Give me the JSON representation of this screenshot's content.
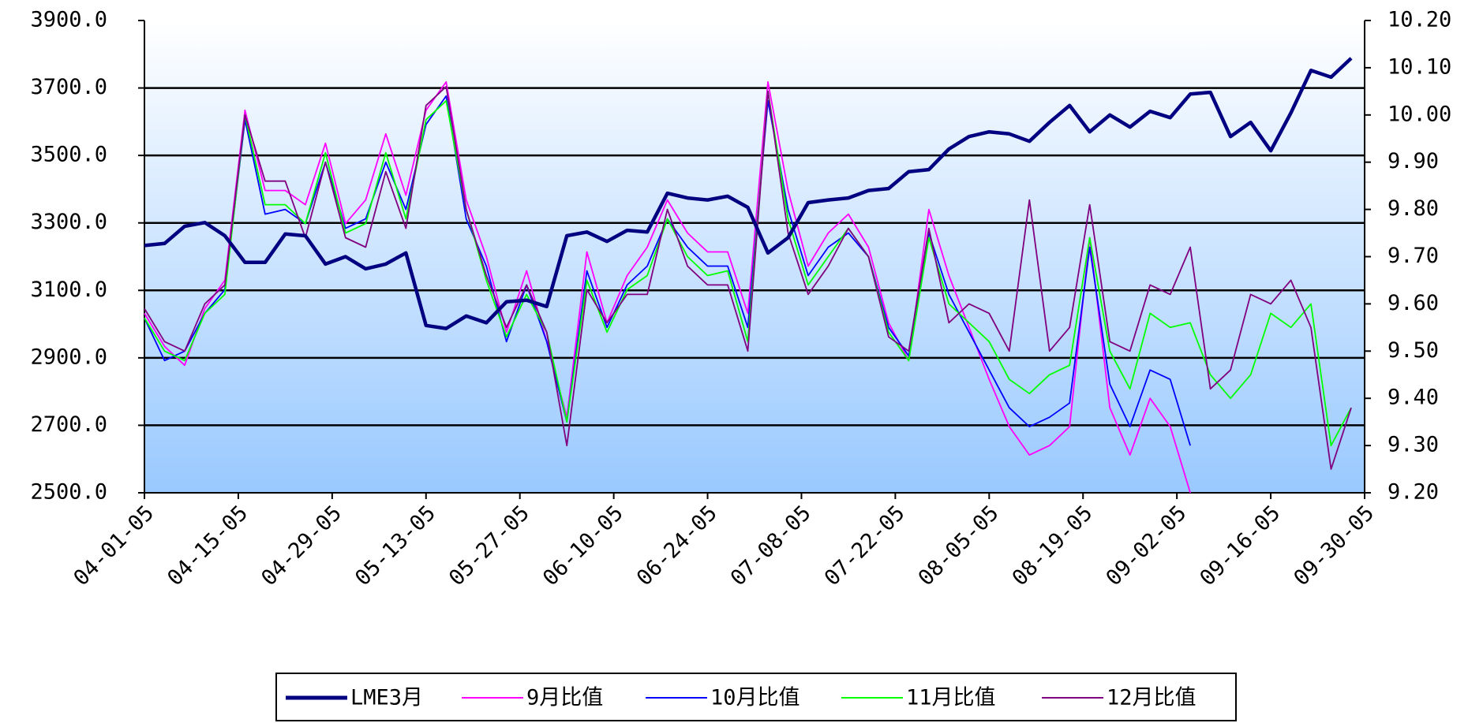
{
  "chart_data": {
    "type": "line",
    "x": [
      "04-01-05",
      "04-04-05",
      "04-07-05",
      "04-10-05",
      "04-13-05",
      "04-16-05",
      "04-19-05",
      "04-22-05",
      "04-25-05",
      "04-28-05",
      "05-01-05",
      "05-04-05",
      "05-07-05",
      "05-10-05",
      "05-13-05",
      "05-16-05",
      "05-19-05",
      "05-22-05",
      "05-25-05",
      "05-28-05",
      "05-31-05",
      "06-03-05",
      "06-06-05",
      "06-09-05",
      "06-12-05",
      "06-15-05",
      "06-18-05",
      "06-21-05",
      "06-24-05",
      "06-27-05",
      "06-30-05",
      "07-03-05",
      "07-06-05",
      "07-09-05",
      "07-12-05",
      "07-15-05",
      "07-18-05",
      "07-21-05",
      "07-24-05",
      "07-27-05",
      "07-30-05",
      "08-02-05",
      "08-05-05",
      "08-08-05",
      "08-11-05",
      "08-14-05",
      "08-17-05",
      "08-20-05",
      "08-23-05",
      "08-26-05",
      "08-29-05",
      "09-01-05",
      "09-04-05",
      "09-07-05",
      "09-10-05",
      "09-13-05",
      "09-16-05",
      "09-19-05",
      "09-22-05",
      "09-25-05",
      "09-28-05"
    ],
    "xlim": [
      "04-01-05",
      "09-30-05"
    ],
    "xticks": [
      "04-01-05",
      "04-15-05",
      "04-29-05",
      "05-13-05",
      "05-27-05",
      "06-10-05",
      "06-24-05",
      "07-08-05",
      "07-22-05",
      "08-05-05",
      "08-19-05",
      "09-02-05",
      "09-16-05",
      "09-30-05"
    ],
    "ylim": [
      2500,
      3900
    ],
    "yticks": [
      {
        "value": 2500,
        "label": "2500.0"
      },
      {
        "value": 2700,
        "label": "2700.0"
      },
      {
        "value": 2900,
        "label": "2900.0"
      },
      {
        "value": 3100,
        "label": "3100.0"
      },
      {
        "value": 3300,
        "label": "3300.0"
      },
      {
        "value": 3500,
        "label": "3500.0"
      },
      {
        "value": 3700,
        "label": "3700.0"
      },
      {
        "value": 3900,
        "label": "3900.0"
      }
    ],
    "y2lim": [
      9.2,
      10.2
    ],
    "y2ticks": [
      {
        "value": 9.2,
        "label": "9.20"
      },
      {
        "value": 9.3,
        "label": "9.30"
      },
      {
        "value": 9.4,
        "label": "9.40"
      },
      {
        "value": 9.5,
        "label": "9.50"
      },
      {
        "value": 9.6,
        "label": "9.60"
      },
      {
        "value": 9.7,
        "label": "9.70"
      },
      {
        "value": 9.8,
        "label": "9.80"
      },
      {
        "value": 9.9,
        "label": "9.90"
      },
      {
        "value": 10.0,
        "label": "10.00"
      },
      {
        "value": 10.1,
        "label": "10.10"
      },
      {
        "value": 10.2,
        "label": "10.20"
      }
    ],
    "grid": true,
    "series": [
      {
        "name": "LME3月",
        "color": "#000080",
        "axis": "y",
        "values": [
          3233,
          3239,
          3290,
          3301,
          3262,
          3183,
          3183,
          3267,
          3262,
          3178,
          3200,
          3164,
          3178,
          3211,
          2996,
          2987,
          3024,
          3004,
          3066,
          3071,
          3052,
          3262,
          3273,
          3245,
          3278,
          3273,
          3388,
          3374,
          3368,
          3379,
          3346,
          3211,
          3256,
          3360,
          3368,
          3374,
          3396,
          3402,
          3452,
          3458,
          3519,
          3556,
          3570,
          3564,
          3542,
          3598,
          3648,
          3570,
          3620,
          3584,
          3631,
          3612,
          3682,
          3687,
          3556,
          3598,
          3514,
          3626,
          3752,
          3732,
          3788
        ]
      },
      {
        "name": "9月比值",
        "color": "#ff00ff",
        "axis": "y2",
        "values": [
          9.58,
          9.51,
          9.47,
          9.59,
          9.65,
          10.01,
          9.84,
          9.84,
          9.81,
          9.94,
          9.77,
          9.82,
          9.96,
          9.83,
          10.01,
          10.07,
          9.82,
          9.7,
          9.54,
          9.67,
          9.52,
          9.36,
          9.71,
          9.56,
          9.66,
          9.72,
          9.82,
          9.75,
          9.71,
          9.71,
          9.58,
          10.07,
          9.84,
          9.68,
          9.75,
          9.79,
          9.72,
          9.56,
          9.48,
          9.8,
          9.66,
          9.55,
          9.44,
          9.34,
          9.28,
          9.3,
          9.34,
          9.74,
          9.38,
          9.28,
          9.4,
          9.34,
          9.2,
          null,
          null,
          null,
          null,
          null,
          null,
          null,
          null
        ]
      },
      {
        "name": "10月比值",
        "color": "#0000ff",
        "axis": "y2",
        "values": [
          9.57,
          9.48,
          9.5,
          9.58,
          9.63,
          9.99,
          9.79,
          9.8,
          9.77,
          9.9,
          9.76,
          9.78,
          9.9,
          9.8,
          9.98,
          10.04,
          9.78,
          9.68,
          9.52,
          9.64,
          9.52,
          9.35,
          9.67,
          9.55,
          9.64,
          9.68,
          9.78,
          9.72,
          9.68,
          9.68,
          9.55,
          10.03,
          9.8,
          9.66,
          9.72,
          9.75,
          9.7,
          9.55,
          9.49,
          9.75,
          9.62,
          9.54,
          9.46,
          9.38,
          9.34,
          9.36,
          9.39,
          9.72,
          9.43,
          9.34,
          9.46,
          9.44,
          9.3,
          null,
          null,
          null,
          null,
          null,
          null,
          null,
          null
        ]
      },
      {
        "name": "11月比值",
        "color": "#00ff00",
        "axis": "y2",
        "values": [
          9.57,
          9.5,
          9.48,
          9.58,
          9.62,
          10.0,
          9.81,
          9.81,
          9.77,
          9.92,
          9.75,
          9.77,
          9.92,
          9.78,
          9.99,
          10.03,
          9.8,
          9.65,
          9.53,
          9.62,
          9.54,
          9.35,
          9.65,
          9.54,
          9.63,
          9.66,
          9.78,
          9.7,
          9.66,
          9.67,
          9.52,
          10.05,
          9.78,
          9.64,
          9.7,
          9.76,
          9.7,
          9.54,
          9.48,
          9.74,
          9.6,
          9.56,
          9.52,
          9.44,
          9.41,
          9.45,
          9.47,
          9.74,
          9.5,
          9.42,
          9.58,
          9.55,
          9.56,
          9.45,
          9.4,
          9.45,
          9.58,
          9.55,
          9.6,
          9.3,
          9.38
        ]
      },
      {
        "name": "12月比值",
        "color": "#800080",
        "axis": "y2",
        "values": [
          9.59,
          9.52,
          9.5,
          9.6,
          9.64,
          10.0,
          9.86,
          9.86,
          9.74,
          9.9,
          9.74,
          9.72,
          9.88,
          9.76,
          10.02,
          10.06,
          9.8,
          9.66,
          9.55,
          9.64,
          9.54,
          9.3,
          9.63,
          9.56,
          9.62,
          9.62,
          9.8,
          9.68,
          9.64,
          9.64,
          9.5,
          10.05,
          9.75,
          9.62,
          9.68,
          9.76,
          9.7,
          9.53,
          9.5,
          9.76,
          9.56,
          9.6,
          9.58,
          9.5,
          9.82,
          9.5,
          9.55,
          9.81,
          9.52,
          9.5,
          9.64,
          9.62,
          9.72,
          9.42,
          9.46,
          9.62,
          9.6,
          9.65,
          9.55,
          9.25,
          9.38
        ]
      }
    ]
  }
}
